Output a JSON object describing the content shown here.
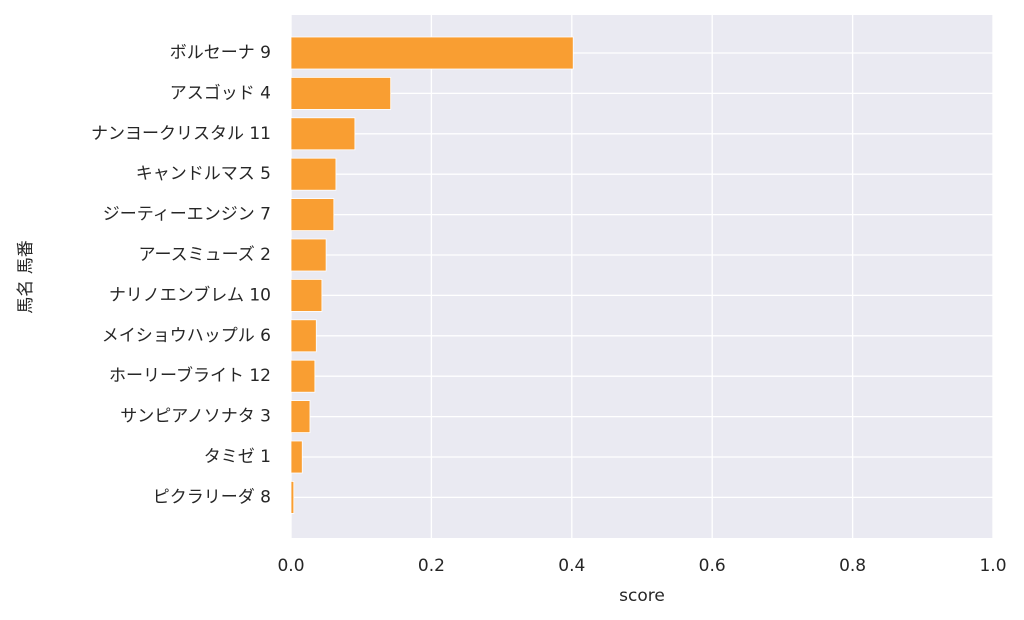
{
  "chart_data": {
    "type": "barh",
    "xlabel": "score",
    "ylabel": "馬名 馬番",
    "categories": [
      "ボルセーナ 9",
      "アスゴッド 4",
      "ナンヨークリスタル 11",
      "キャンドルマス 5",
      "ジーティーエンジン 7",
      "アースミューズ 2",
      "ナリノエンブレム 10",
      "メイショウハップル 6",
      "ホーリーブライト 12",
      "サンピアノソナタ 3",
      "タミゼ 1",
      "ピクラリーダ 8"
    ],
    "values": [
      0.402,
      0.142,
      0.091,
      0.064,
      0.061,
      0.05,
      0.044,
      0.036,
      0.034,
      0.027,
      0.016,
      0.004
    ],
    "color": "#f99e32",
    "xlim": [
      0,
      1
    ],
    "xticks": [
      {
        "value": 0,
        "label": "0.0"
      },
      0.2,
      0.4,
      0.6,
      0.8,
      {
        "value": 1,
        "label": "1.0"
      }
    ],
    "grid": true
  }
}
